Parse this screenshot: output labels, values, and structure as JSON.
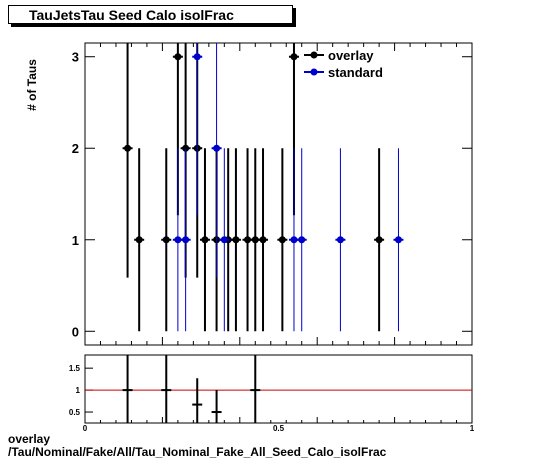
{
  "chart_data": [
    {
      "type": "scatter",
      "title": "TauJetsTau Seed Calo isolFrac",
      "ylabel": "# of Taus",
      "xlim": [
        0,
        1
      ],
      "ylim": [
        -0.15,
        3.15
      ],
      "yticks": [
        0,
        1,
        2,
        3
      ],
      "xticks": [],
      "legend_position": "top-right",
      "series": [
        {
          "name": "overlay",
          "color": "#000000",
          "x": [
            0.11,
            0.14,
            0.21,
            0.24,
            0.26,
            0.29,
            0.31,
            0.34,
            0.37,
            0.39,
            0.42,
            0.44,
            0.46,
            0.51,
            0.54,
            0.76
          ],
          "y": [
            2,
            1,
            1,
            3,
            2,
            2,
            1,
            1,
            1,
            1,
            1,
            1,
            1,
            1,
            3,
            1
          ]
        },
        {
          "name": "standard",
          "color": "#0000cc",
          "x": [
            0.24,
            0.26,
            0.29,
            0.34,
            0.36,
            0.54,
            0.56,
            0.66,
            0.81
          ],
          "y": [
            1,
            1,
            3,
            2,
            1,
            1,
            1,
            1,
            1
          ]
        }
      ]
    },
    {
      "type": "scatter",
      "title": "",
      "ylabel": "",
      "xlim": [
        0,
        1
      ],
      "ylim": [
        0.25,
        1.8
      ],
      "yticks": [
        0.5,
        1,
        1.5
      ],
      "xticks": [
        0,
        0.5,
        1
      ],
      "reference_line": 1,
      "series": [
        {
          "name": "",
          "color": "#000000",
          "x": [
            0.11,
            0.21,
            0.29,
            0.34,
            0.44
          ],
          "y": [
            1,
            1,
            0.67,
            0.5,
            1
          ]
        }
      ]
    }
  ],
  "footer": {
    "line1": "overlay",
    "line2": "/Tau/Nominal/Fake/All/Tau_Nominal_Fake_All_Seed_Calo_isolFrac"
  }
}
